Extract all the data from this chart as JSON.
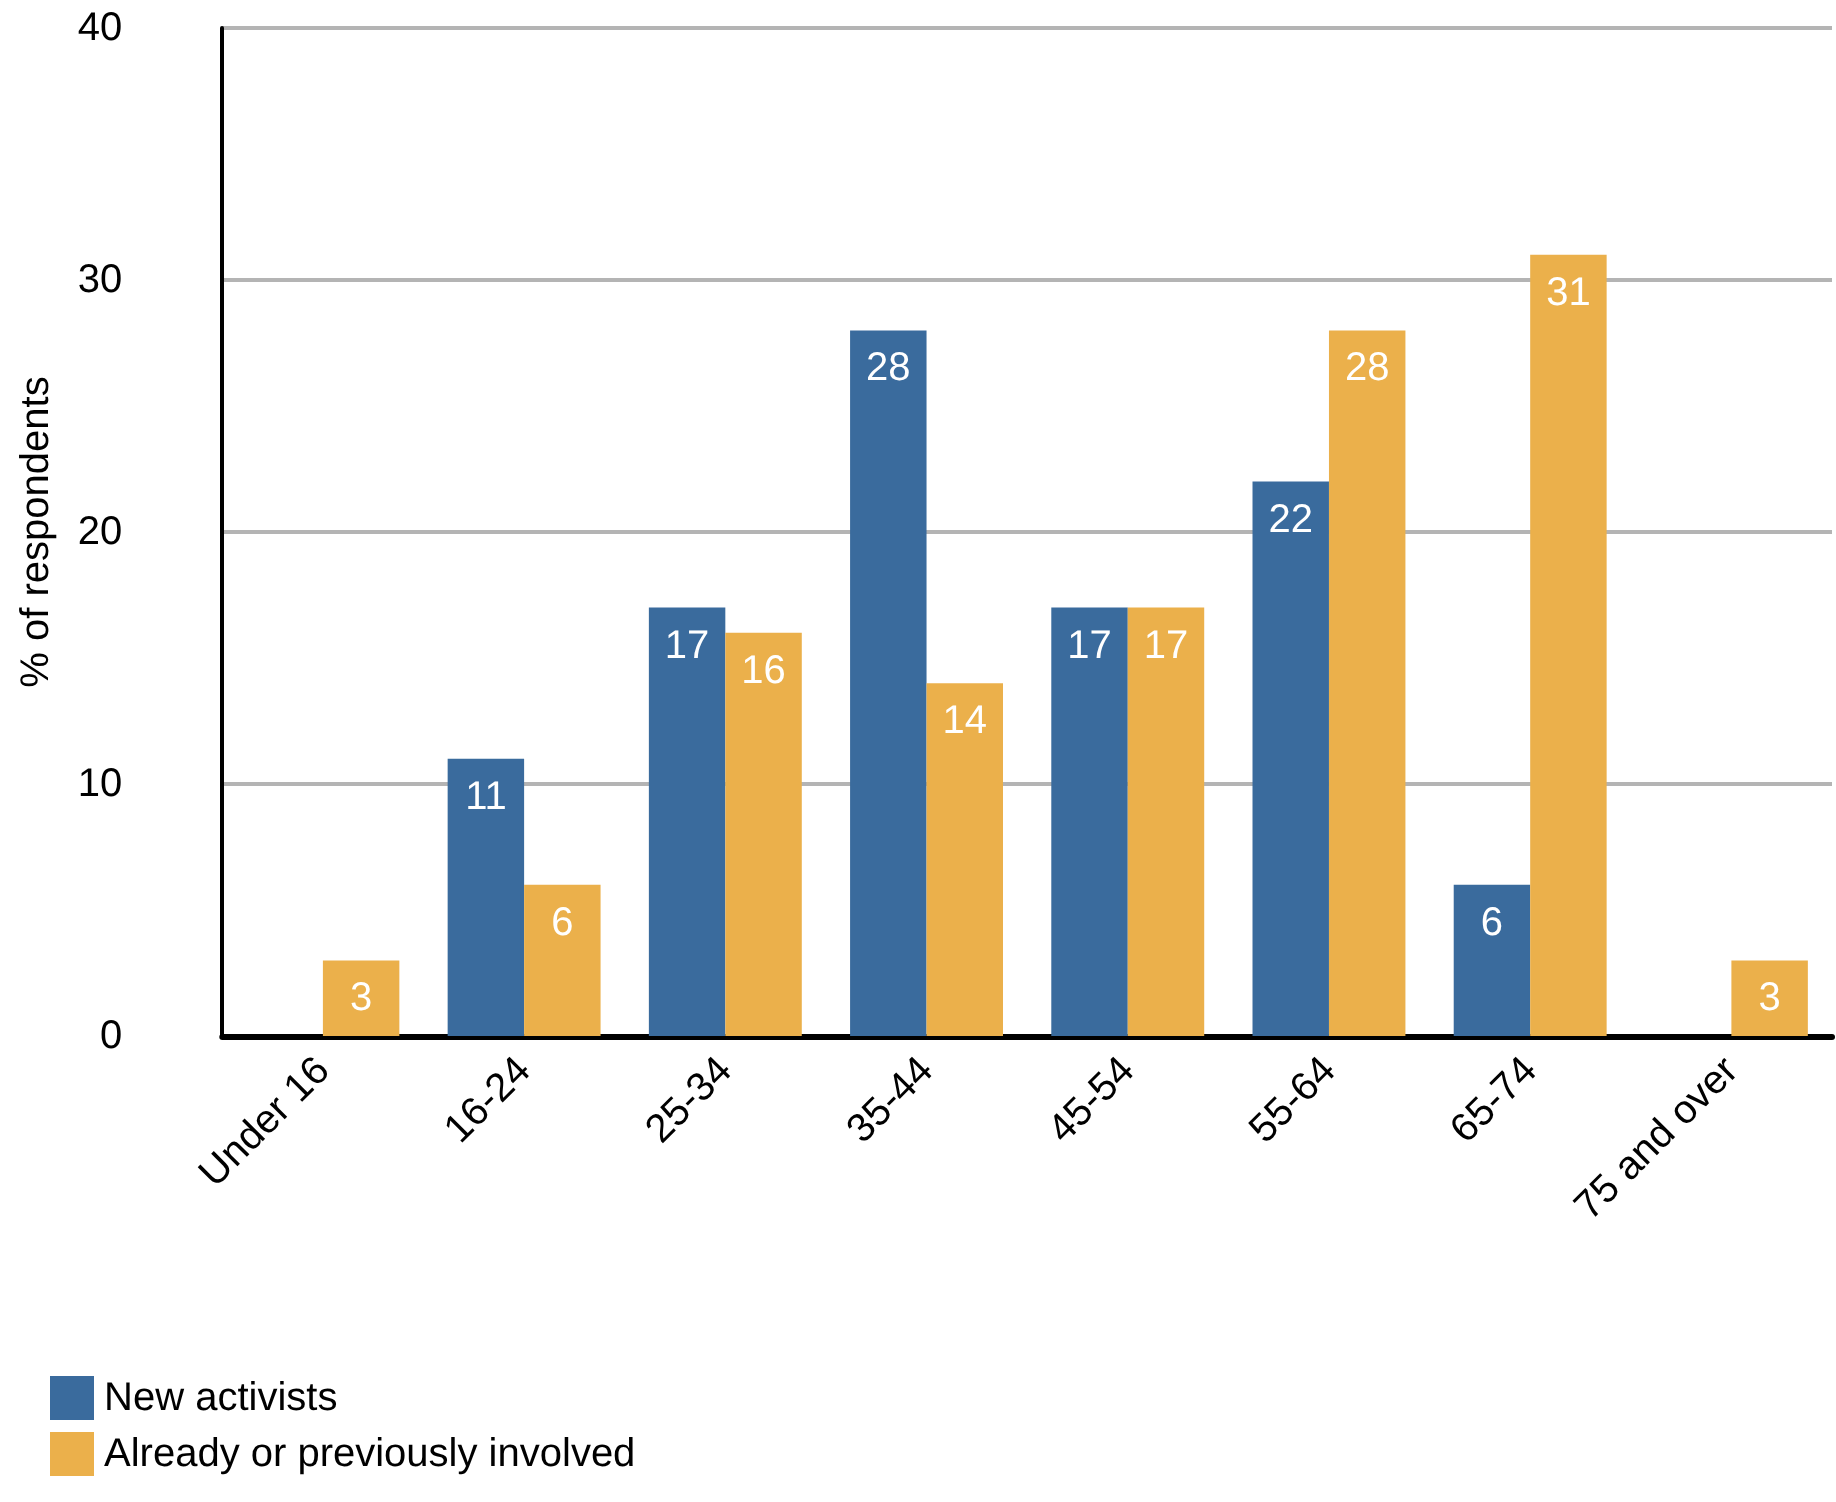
{
  "chart_data": {
    "type": "bar",
    "ylabel": "% of respondents",
    "categories": [
      "Under 16",
      "16-24",
      "25-34",
      "35-44",
      "45-54",
      "55-64",
      "65-74",
      "75 and over"
    ],
    "series": [
      {
        "name": "New activists",
        "color": "#3a6b9d",
        "values": [
          null,
          11,
          17,
          28,
          17,
          22,
          6,
          null
        ]
      },
      {
        "name": "Already or previously involved",
        "color": "#ebb04b",
        "values": [
          3,
          6,
          16,
          14,
          17,
          28,
          31,
          3
        ]
      }
    ],
    "ylim": [
      0,
      40
    ],
    "yticks": [
      0,
      10,
      20,
      30,
      40
    ],
    "grid": "y",
    "legend": "bottom left",
    "data_labels": true
  }
}
